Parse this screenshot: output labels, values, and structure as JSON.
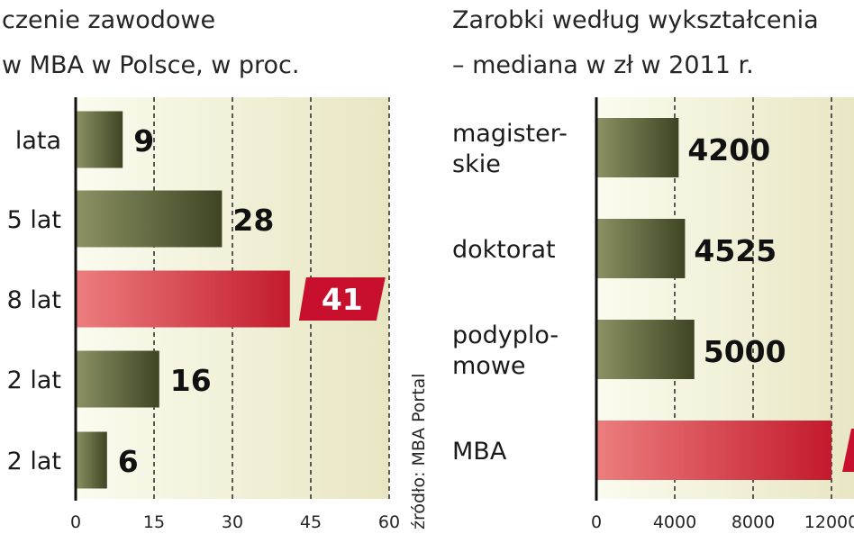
{
  "source": "źródło: MBA Portal",
  "colors": {
    "bar_olive_light": "#8c9264",
    "bar_olive_dark": "#3f4523",
    "bar_red_light": "#ec7e7e",
    "bar_red_dark": "#c31a2d",
    "plot_bg_left": "#fbfbef",
    "plot_bg_right": "#e8e6c2",
    "label_red_bg": "#c8102e"
  },
  "chart_data": [
    {
      "type": "bar",
      "orientation": "horizontal",
      "title_lines": [
        "czenie zawodowe",
        "w MBA w Polsce, w proc."
      ],
      "categories": [
        "lata",
        "5 lat",
        "8 lat",
        "2 lat",
        "2 lat"
      ],
      "values": [
        9,
        28,
        41,
        16,
        6
      ],
      "highlight_index": 2,
      "xlim": [
        0,
        60
      ],
      "xticks": [
        0,
        15,
        30,
        45,
        60
      ],
      "grid": "dashed-vertical"
    },
    {
      "type": "bar",
      "orientation": "horizontal",
      "title_lines": [
        "Zarobki według wykształcenia",
        "– mediana w zł w 2011 r."
      ],
      "categories": [
        [
          "magister-",
          "skie"
        ],
        [
          "doktorat"
        ],
        [
          "podyplo-",
          "mowe"
        ],
        [
          "MBA"
        ]
      ],
      "values": [
        4200,
        4525,
        5000,
        12000
      ],
      "value_labels": [
        "4200",
        "4525",
        "5000",
        ""
      ],
      "highlight_index": 3,
      "xlim": [
        0,
        16000
      ],
      "xticks": [
        0,
        4000,
        8000,
        12000
      ],
      "xtick_labels": [
        "0",
        "4000",
        "8000",
        "12000"
      ],
      "grid": "dashed-vertical"
    }
  ]
}
